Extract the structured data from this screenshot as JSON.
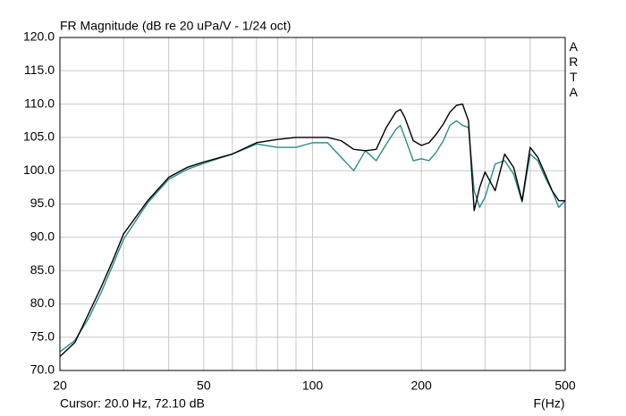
{
  "chart_data": {
    "type": "line",
    "title": "FR Magnitude (dB re 20 uPa/V - 1/24 oct)",
    "side_label": "ARTA",
    "cursor": "Cursor: 20.0 Hz, 72.10 dB",
    "x_label": "F(Hz)",
    "xscale": "log",
    "xlim": [
      20,
      500
    ],
    "xticks": [
      20,
      50,
      100,
      200,
      500
    ],
    "xgrid_minor": [
      30,
      40,
      60,
      70,
      80,
      90,
      300,
      400
    ],
    "ylim": [
      70,
      120
    ],
    "yticks": [
      {
        "value": 70,
        "label": "70.0"
      },
      {
        "value": 75,
        "label": "75.0"
      },
      {
        "value": 80,
        "label": "80.0"
      },
      {
        "value": 85,
        "label": "85.0"
      },
      {
        "value": 90,
        "label": "90.0"
      },
      {
        "value": 95,
        "label": "95.0"
      },
      {
        "value": 100,
        "label": "100.0"
      },
      {
        "value": 105,
        "label": "105.0"
      },
      {
        "value": 110,
        "label": "110.0"
      },
      {
        "value": 115,
        "label": "115.0"
      },
      {
        "value": 120,
        "label": "120.0"
      }
    ],
    "grid": true,
    "x": [
      20,
      22,
      24,
      26,
      28,
      30,
      35,
      40,
      45,
      50,
      60,
      70,
      80,
      90,
      100,
      110,
      120,
      130,
      140,
      150,
      160,
      170,
      175,
      180,
      190,
      200,
      210,
      220,
      230,
      240,
      250,
      260,
      270,
      280,
      290,
      300,
      320,
      340,
      360,
      380,
      400,
      420,
      440,
      460,
      480,
      500
    ],
    "series": [
      {
        "color": "#2a8c8c",
        "values": [
          72.8,
          74.5,
          77.8,
          81.7,
          85.8,
          89.7,
          95.2,
          98.7,
          100.2,
          101.1,
          102.5,
          104.0,
          103.5,
          103.5,
          104.2,
          104.2,
          102.0,
          100.0,
          103.0,
          101.5,
          104.0,
          106.2,
          106.8,
          105.0,
          101.5,
          101.8,
          101.5,
          102.8,
          104.5,
          106.8,
          107.5,
          106.8,
          106.5,
          97.0,
          94.5,
          96.0,
          101.0,
          101.5,
          99.5,
          95.3,
          102.5,
          101.5,
          99.0,
          97.0,
          94.5,
          95.5
        ]
      },
      {
        "color": "#000000",
        "values": [
          72.1,
          74.2,
          78.5,
          82.5,
          86.5,
          90.5,
          95.5,
          99.0,
          100.5,
          101.3,
          102.5,
          104.2,
          104.7,
          105.0,
          105.0,
          105.0,
          104.5,
          103.2,
          103.0,
          103.2,
          106.5,
          108.8,
          109.2,
          108.0,
          104.5,
          103.8,
          104.2,
          105.5,
          107.0,
          108.8,
          109.8,
          110.0,
          107.5,
          94.0,
          97.5,
          99.8,
          97.0,
          102.5,
          100.5,
          95.5,
          103.5,
          102.0,
          99.5,
          97.0,
          95.5,
          95.5
        ]
      }
    ]
  }
}
